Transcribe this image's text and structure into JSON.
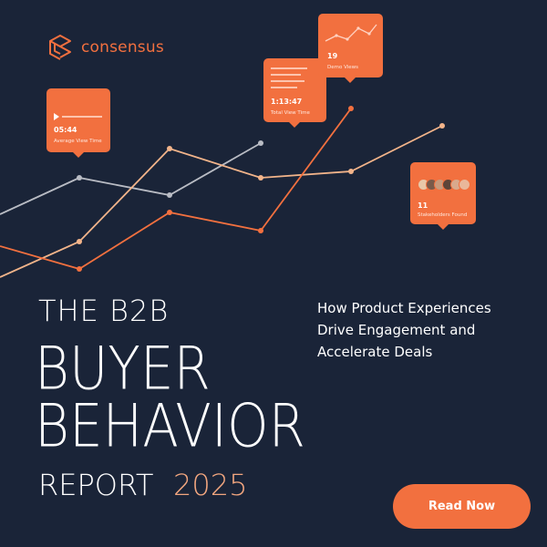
{
  "brand": {
    "name": "consensus",
    "logo_icon": "consensus-logo-icon",
    "accent_color": "#f2703f"
  },
  "colors": {
    "background": "#1a2438",
    "orange": "#f2703f",
    "peach": "#f2b48a",
    "gray": "#b9bcc4",
    "year": "#f2a67f"
  },
  "metric_cards": {
    "average_view_time": {
      "value": "05:44",
      "label": "Average View Time",
      "icon": "play-icon"
    },
    "total_view_time": {
      "value": "1:13:47",
      "label": "Total View Time"
    },
    "demo_views": {
      "value": "19",
      "label": "Demo Views"
    },
    "stakeholders_found": {
      "value": "11",
      "label": "Stakeholders Found",
      "icon": "avatar-group-icon"
    }
  },
  "headline": {
    "line1": "THE B2B",
    "line2": "BUYER",
    "line3": "BEHAVIOR",
    "line4_prefix": "REPORT",
    "line4_year": "2025"
  },
  "subtitle": {
    "line1": "How Product Experiences",
    "line2": "Drive Engagement and",
    "line3": "Accelerate Deals"
  },
  "cta": {
    "label": "Read Now"
  }
}
